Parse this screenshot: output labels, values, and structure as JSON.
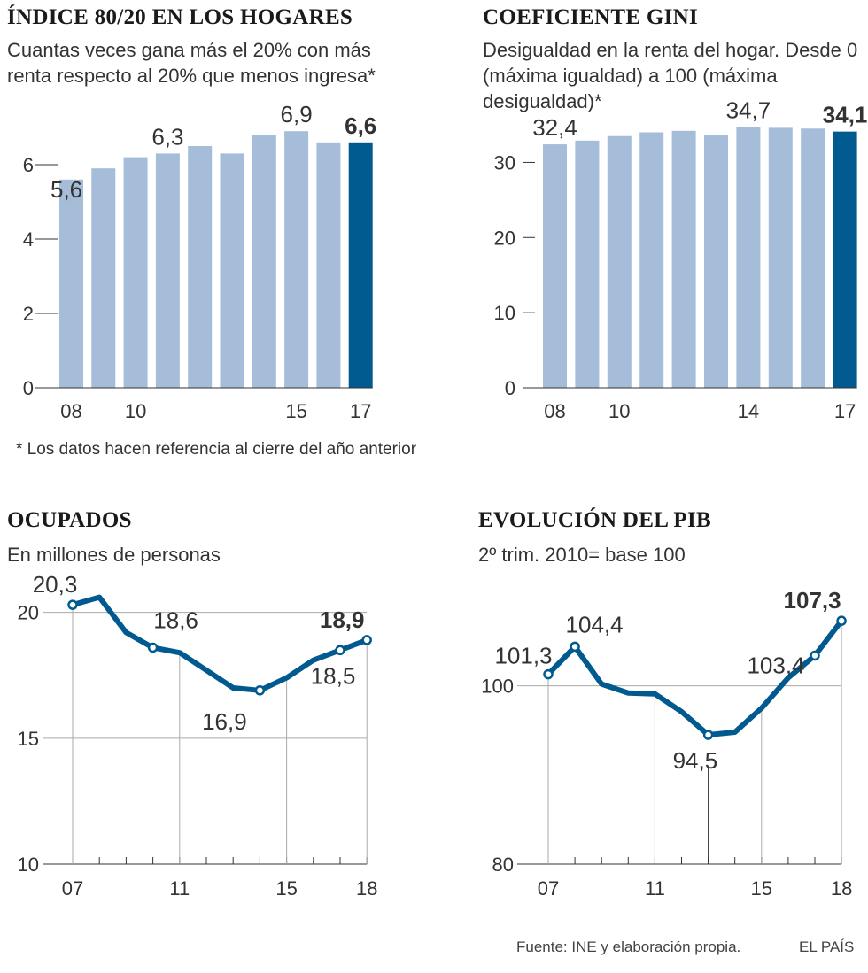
{
  "charts": {
    "c1": {
      "title": "ÍNDICE 80/20 EN LOS HOGARES",
      "subtitle": "Cuantas veces gana más el 20% con más renta respecto al 20% que menos ingresa*"
    },
    "c2": {
      "title": "COEFICIENTE GINI",
      "subtitle": "Desigualdad en la renta del hogar. Desde 0 (máxima igualdad) a 100 (máxima desigualdad)*"
    },
    "c3": {
      "title": "OCUPADOS",
      "subtitle": "En millones de personas"
    },
    "c4": {
      "title": "EVOLUCIÓN DEL PIB",
      "subtitle": "2º trim. 2010= base 100"
    }
  },
  "note": "* Los datos hacen referencia al cierre del año anterior",
  "footer": {
    "source": "Fuente: INE y elaboración propia.",
    "brand": "EL PAÍS"
  },
  "colors": {
    "bar": "#a5bdd9",
    "highlight": "#005a8f",
    "line": "#005a8f",
    "axis": "#333333",
    "grid": "#aaaaaa"
  },
  "chart_data": [
    {
      "type": "bar",
      "title": "ÍNDICE 80/20 EN LOS HOGARES",
      "categories": [
        "08",
        "09",
        "10",
        "11",
        "12",
        "13",
        "14",
        "15",
        "16",
        "17"
      ],
      "values": [
        5.6,
        5.9,
        6.2,
        6.3,
        6.5,
        6.3,
        6.8,
        6.9,
        6.6,
        6.6
      ],
      "ylim": [
        0,
        7
      ],
      "yticks": [
        "0",
        "2",
        "4",
        "6"
      ],
      "xticks": [
        "08",
        "10",
        "15",
        "17"
      ],
      "labels": [
        "5,6",
        "6,3",
        "6,9",
        "6,6"
      ]
    },
    {
      "type": "bar",
      "title": "COEFICIENTE GINI",
      "categories": [
        "08",
        "09",
        "10",
        "11",
        "12",
        "13",
        "14",
        "15",
        "16",
        "17"
      ],
      "values": [
        32.4,
        32.9,
        33.5,
        34.0,
        34.2,
        33.7,
        34.7,
        34.6,
        34.5,
        34.1
      ],
      "ylim": [
        0,
        35
      ],
      "yticks": [
        "0",
        "10",
        "20",
        "30"
      ],
      "xticks": [
        "08",
        "10",
        "14",
        "17"
      ],
      "labels": [
        "32,4",
        "34,7",
        "34,1"
      ]
    },
    {
      "type": "line",
      "title": "OCUPADOS",
      "x": [
        "07",
        "08",
        "09",
        "10",
        "11",
        "12",
        "13",
        "14",
        "15",
        "16",
        "17",
        "18"
      ],
      "values": [
        20.3,
        20.6,
        19.2,
        18.6,
        18.4,
        17.7,
        17.0,
        16.9,
        17.4,
        18.1,
        18.5,
        18.9
      ],
      "ylim": [
        10,
        21.5
      ],
      "yticks": [
        "10",
        "15",
        "20"
      ],
      "xticks": [
        "07",
        "11",
        "15",
        "18"
      ],
      "labels": [
        "20,3",
        "18,6",
        "16,9",
        "18,5",
        "18,9"
      ]
    },
    {
      "type": "line",
      "title": "EVOLUCIÓN DEL PIB",
      "x": [
        "07",
        "08",
        "09",
        "10",
        "11",
        "12",
        "13",
        "14",
        "15",
        "16",
        "17",
        "18"
      ],
      "values": [
        101.3,
        104.4,
        100.2,
        99.2,
        99.1,
        97.1,
        94.5,
        94.8,
        97.5,
        100.9,
        103.4,
        107.3
      ],
      "ylim": [
        80,
        110
      ],
      "yticks": [
        "80",
        "100"
      ],
      "xticks": [
        "07",
        "11",
        "15",
        "18"
      ],
      "labels": [
        "101,3",
        "104,4",
        "94,5",
        "103,4",
        "107,3"
      ]
    }
  ]
}
